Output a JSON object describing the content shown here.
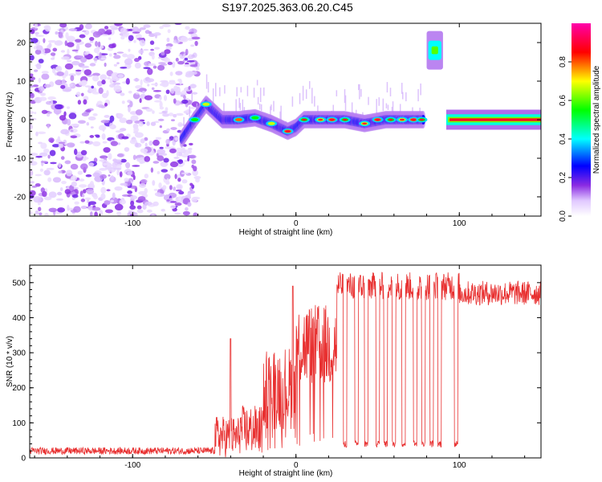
{
  "title": "S197.2025.363.06.20.C45",
  "chart_data": [
    {
      "type": "heatmap",
      "name": "spectrogram",
      "xlabel": "Height of straight line (km)",
      "ylabel": "Frequency (Hz)",
      "xlim": [
        -163,
        150
      ],
      "ylim": [
        -25,
        25
      ],
      "xticks": [
        -100,
        0,
        100
      ],
      "yticks": [
        20,
        10,
        0,
        -10,
        -20
      ],
      "colorbar": {
        "label": "Normalized spectral amplitude",
        "range": [
          0,
          1
        ],
        "ticks": [
          0.0,
          0.2,
          0.4,
          0.6,
          0.8
        ],
        "tick_labels": [
          "0.0",
          "0.2",
          "0.4",
          "0.6",
          "0.8"
        ],
        "colors": [
          "#ffffff",
          "#e8d8ff",
          "#8a2be2",
          "#0000ff",
          "#00ffff",
          "#00ff00",
          "#ffff00",
          "#ff0000",
          "#ff00aa"
        ]
      },
      "features": [
        {
          "description": "diffuse noise",
          "x_range": [
            -163,
            -60
          ],
          "freq_range": [
            -25,
            25
          ],
          "amplitude": 0.1
        },
        {
          "description": "signal trace",
          "points": [
            [
              -70,
              -5
            ],
            [
              -62,
              0
            ],
            [
              -55,
              4
            ],
            [
              -45,
              0
            ],
            [
              -35,
              0
            ],
            [
              -25,
              0.5
            ],
            [
              -15,
              -1
            ],
            [
              -5,
              -3
            ],
            [
              0,
              -2
            ],
            [
              5,
              0
            ],
            [
              15,
              0
            ],
            [
              30,
              0
            ],
            [
              42,
              -1
            ],
            [
              55,
              0
            ],
            [
              65,
              0
            ],
            [
              78,
              0
            ]
          ],
          "amplitude": 0.5
        },
        {
          "description": "side tone",
          "x_range": [
            80,
            90
          ],
          "freq": 18,
          "amplitude": 0.6
        },
        {
          "description": "strong carrier",
          "x_range": [
            92,
            150
          ],
          "freq": 0,
          "amplitude": 0.9
        }
      ]
    },
    {
      "type": "line",
      "name": "snr",
      "xlabel": "Height of straight line (km)",
      "ylabel": "SNR (10 * v/v)",
      "xlim": [
        -163,
        150
      ],
      "ylim": [
        0,
        550
      ],
      "xticks": [
        -100,
        0,
        100
      ],
      "yticks": [
        0,
        100,
        200,
        300,
        400,
        500
      ],
      "color": "#e83030",
      "segments": [
        {
          "x_range": [
            -163,
            -50
          ],
          "mean": 20,
          "noise": 10
        },
        {
          "x_range": [
            -50,
            -35
          ],
          "mean": 60,
          "noise": 60,
          "peak": [
            -40,
            340
          ]
        },
        {
          "x_range": [
            -35,
            -20
          ],
          "mean": 80,
          "noise": 70
        },
        {
          "x_range": [
            -20,
            0
          ],
          "mean": 200,
          "noise": 120,
          "peak": [
            -2,
            490
          ]
        },
        {
          "x_range": [
            0,
            25
          ],
          "mean": 320,
          "noise": 120
        },
        {
          "x_range": [
            25,
            100
          ],
          "mean": 490,
          "noise": 40,
          "dropouts": [
            30,
            37,
            43,
            50,
            55,
            60,
            66,
            73,
            78,
            83,
            88,
            98
          ]
        },
        {
          "x_range": [
            100,
            150
          ],
          "mean": 470,
          "noise": 35
        }
      ]
    }
  ]
}
